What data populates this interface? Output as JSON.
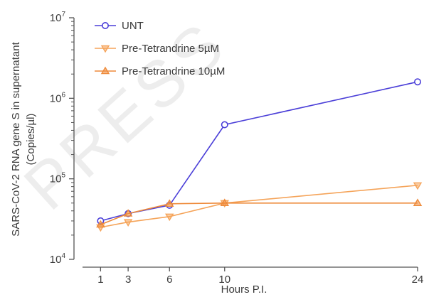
{
  "chart_data": {
    "type": "line",
    "xlabel": "Hours P.I.",
    "ylabel_lines": [
      "SARS-CoV-2 RNA gene S in supernatant",
      "(Copies/µl)"
    ],
    "y_scale": "log10",
    "ylim": [
      10000,
      10000000
    ],
    "xlim": [
      0,
      24
    ],
    "x_ticks": [
      1,
      3,
      6,
      10,
      24
    ],
    "y_ticks": [
      {
        "value": 10000,
        "base": "10",
        "exp": "4"
      },
      {
        "value": 100000,
        "base": "10",
        "exp": "5"
      },
      {
        "value": 1000000,
        "base": "10",
        "exp": "6"
      },
      {
        "value": 10000000,
        "base": "10",
        "exp": "7"
      }
    ],
    "legend_position": "top-left",
    "grid": false,
    "series": [
      {
        "name": "UNT",
        "color": "#4b3fd8",
        "marker": "circle",
        "x": [
          1,
          3,
          6,
          10,
          24
        ],
        "y": [
          30000,
          37000,
          47000,
          470000,
          1600000
        ]
      },
      {
        "name": "Pre-Tetrandrine 5µM",
        "color": "#f5a45a",
        "marker": "triangle-down",
        "x": [
          1,
          3,
          6,
          10,
          24
        ],
        "y": [
          25000,
          29000,
          34000,
          50000,
          83000
        ]
      },
      {
        "name": "Pre-Tetrandrine 10µM",
        "color": "#ee8a3a",
        "marker": "triangle-up",
        "x": [
          1,
          3,
          6,
          10,
          24
        ],
        "y": [
          27000,
          37000,
          49000,
          50000,
          50000
        ]
      }
    ]
  },
  "watermark": "PRESS"
}
